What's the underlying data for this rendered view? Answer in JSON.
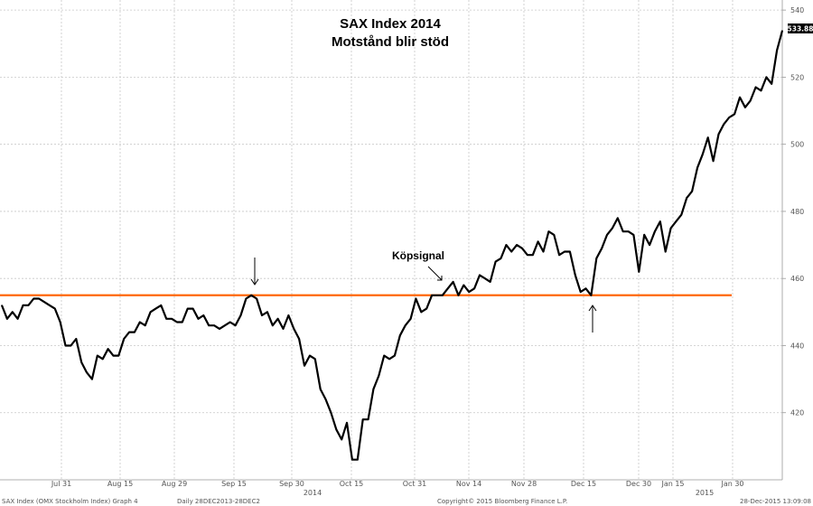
{
  "chart_data": {
    "type": "line",
    "title": "SAX Index 2014",
    "subtitle": "Motstånd blir stöd",
    "xlabel": "",
    "ylabel": "",
    "ylim": [
      400,
      543
    ],
    "y_ticks": [
      420,
      440,
      460,
      480,
      500,
      520,
      540
    ],
    "x_ticks": [
      "Jul 31",
      "Aug 15",
      "Aug 29",
      "Sep 15",
      "Sep 30",
      "Oct 15",
      "Oct 31",
      "Nov 14",
      "Nov 28",
      "Dec 15",
      "Dec 30",
      "Jan 15",
      "Jan 30"
    ],
    "x_year_labels": [
      "2014",
      "2015"
    ],
    "last_value_label": "533.88",
    "grid": true,
    "series": [
      {
        "values": [
          452.0,
          448.0,
          450.0,
          448.0,
          452.0,
          452.0,
          454.0,
          454.0,
          453.0,
          452.0,
          451.0,
          447.0,
          440.0,
          440.0,
          442.0,
          435.0,
          432.0,
          430.0,
          437.0,
          436.0,
          439.0,
          437.0,
          437.0,
          442.0,
          444.0,
          444.0,
          447.0,
          446.0,
          450.0,
          451.0,
          452.0,
          448.0,
          448.0,
          447.0,
          447.0,
          451.0,
          451.0,
          448.0,
          449.0,
          446.0,
          446.0,
          445.0,
          446.0,
          447.0,
          446.0,
          449.0,
          454.0,
          455.0,
          454.0,
          449.0,
          450.0,
          446.0,
          448.0,
          445.0,
          449.0,
          445.0,
          442.0,
          434.0,
          437.0,
          436.0,
          427.0,
          424.0,
          420.0,
          415.0,
          412.0,
          417.0,
          406.0,
          406.0,
          418.0,
          418.0,
          427.0,
          431.0,
          437.0,
          436.0,
          437.0,
          443.0,
          446.0,
          448.0,
          454.0,
          450.0,
          451.0,
          455.0,
          455.0,
          455.0,
          457.0,
          459.0,
          455.0,
          458.0,
          456.0,
          457.0,
          461.0,
          460.0,
          459.0,
          465.0,
          466.0,
          470.0,
          468.0,
          470.0,
          469.0,
          467.0,
          467.0,
          471.0,
          468.0,
          474.0,
          473.0,
          467.0,
          468.0,
          468.0,
          461.0,
          456.0,
          457.0,
          455.0,
          466.0,
          469.0,
          473.0,
          475.0,
          478.0,
          474.0,
          474.0,
          473.0,
          462.0,
          473.0,
          470.0,
          474.0,
          477.0,
          468.0,
          475.0,
          477.0,
          479.0,
          484.0,
          486.0,
          493.0,
          497.0,
          502.0,
          495.0,
          503.0,
          506.0,
          508.0,
          509.0,
          514.0,
          511.0,
          513.0,
          517.0,
          516.0,
          520.0,
          518.0,
          528.0,
          533.88
        ]
      },
      {
        "name": "",
        "values": [
          455,
          455
        ]
      }
    ],
    "annotations": [
      "Köpsignal"
    ],
    "colors": {
      "series": "#000000",
      "support_line": "#ff6600",
      "grid": "#c8c8c8"
    }
  },
  "footer": {
    "left": "SAX Index (OMX Stockholm Index) Graph 4",
    "center_left": "Daily 28DEC2013-28DEC2",
    "center_right": "Copyright© 2015 Bloomberg Finance L.P.",
    "right": "28-Dec-2015 13:09:08"
  }
}
